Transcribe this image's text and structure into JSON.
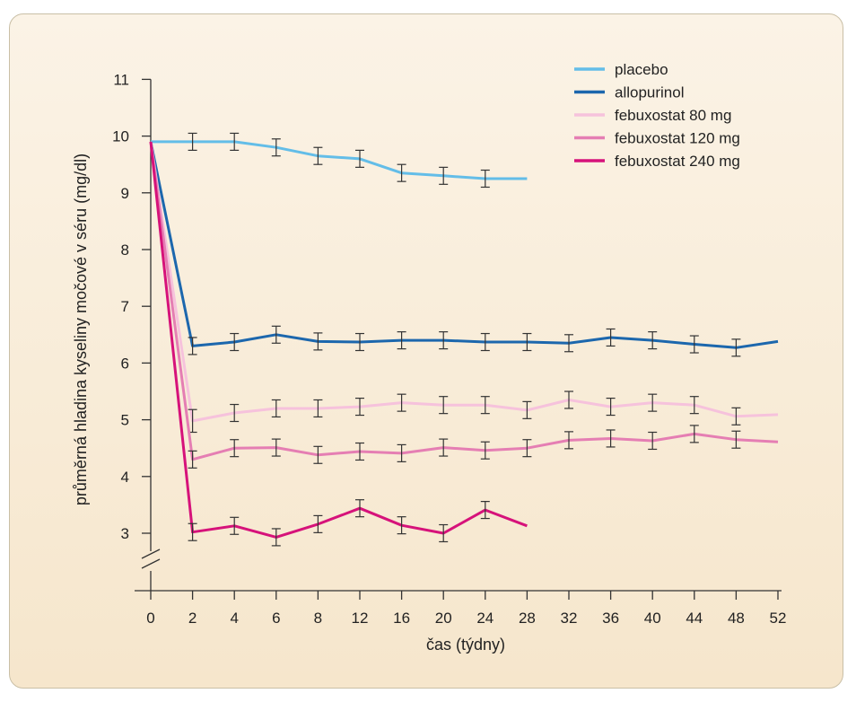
{
  "chart_data": {
    "type": "line",
    "title": "",
    "xlabel": "čas (týdny)",
    "ylabel": "průměrná hladina kyseliny močové v séru (mg/dl)",
    "ylim": [
      3,
      11
    ],
    "y_axis_break": true,
    "y_ticks": [
      "3",
      "4",
      "5",
      "6",
      "7",
      "8",
      "9",
      "10",
      "11"
    ],
    "categories": [
      "0",
      "2",
      "4",
      "6",
      "8",
      "12",
      "16",
      "20",
      "24",
      "28",
      "32",
      "36",
      "40",
      "44",
      "48",
      "52"
    ],
    "legend_position": "top-right",
    "grid": false,
    "series": [
      {
        "name": "placebo",
        "color": "#63bde8",
        "values": [
          9.9,
          9.9,
          9.9,
          9.8,
          9.65,
          9.6,
          9.35,
          9.3,
          9.25,
          9.25,
          null,
          null,
          null,
          null,
          null,
          null
        ],
        "error": [
          0,
          0.15,
          0.15,
          0.15,
          0.15,
          0.15,
          0.15,
          0.15,
          0.15,
          0,
          null,
          null,
          null,
          null,
          null,
          null
        ]
      },
      {
        "name": "allopurinol",
        "color": "#1c67ad",
        "values": [
          9.9,
          6.3,
          6.37,
          6.5,
          6.38,
          6.37,
          6.4,
          6.4,
          6.37,
          6.37,
          6.35,
          6.45,
          6.4,
          6.33,
          6.27,
          6.38
        ],
        "error": [
          0,
          0.15,
          0.15,
          0.15,
          0.15,
          0.15,
          0.15,
          0.15,
          0.15,
          0.15,
          0.15,
          0.15,
          0.15,
          0.15,
          0.15,
          0
        ]
      },
      {
        "name": "febuxostat 80 mg",
        "color": "#f6c2dc",
        "values": [
          9.9,
          4.98,
          5.12,
          5.2,
          5.2,
          5.23,
          5.3,
          5.26,
          5.26,
          5.17,
          5.35,
          5.23,
          5.3,
          5.26,
          5.06,
          5.09
        ],
        "error": [
          0,
          0.2,
          0.15,
          0.15,
          0.15,
          0.15,
          0.15,
          0.15,
          0.15,
          0.15,
          0.15,
          0.15,
          0.15,
          0.15,
          0.15,
          0
        ]
      },
      {
        "name": "febuxostat 120 mg",
        "color": "#e57eb3",
        "values": [
          9.9,
          4.3,
          4.5,
          4.51,
          4.38,
          4.44,
          4.41,
          4.51,
          4.46,
          4.5,
          4.64,
          4.67,
          4.63,
          4.75,
          4.65,
          4.61
        ],
        "error": [
          0,
          0.15,
          0.15,
          0.15,
          0.15,
          0.15,
          0.15,
          0.15,
          0.15,
          0.15,
          0.15,
          0.15,
          0.15,
          0.15,
          0.15,
          0
        ]
      },
      {
        "name": "febuxostat 240 mg",
        "color": "#d6127a",
        "values": [
          9.9,
          3.02,
          3.13,
          2.93,
          3.16,
          3.44,
          3.14,
          3.0,
          3.41,
          3.13,
          null,
          null,
          null,
          null,
          null,
          null
        ],
        "error": [
          0,
          0.15,
          0.15,
          0.15,
          0.15,
          0.15,
          0.15,
          0.15,
          0.15,
          0,
          null,
          null,
          null,
          null,
          null,
          null
        ]
      }
    ]
  }
}
